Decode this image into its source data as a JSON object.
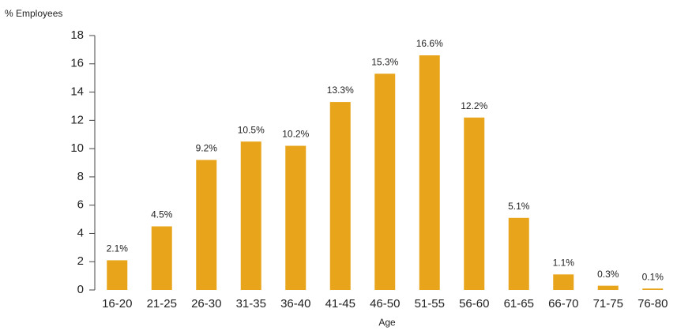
{
  "chart_data": {
    "type": "bar",
    "y_label": "% Employees",
    "x_label": "Age",
    "categories": [
      "16-20",
      "21-25",
      "26-30",
      "31-35",
      "36-40",
      "41-45",
      "46-50",
      "51-55",
      "56-60",
      "61-65",
      "66-70",
      "71-75",
      "76-80"
    ],
    "values": [
      2.1,
      4.5,
      9.2,
      10.5,
      10.2,
      13.3,
      15.3,
      16.6,
      12.2,
      5.1,
      1.1,
      0.3,
      0.1
    ],
    "value_labels": [
      "2.1%",
      "4.5%",
      "9.2%",
      "10.5%",
      "10.2%",
      "13.3%",
      "15.3%",
      "16.6%",
      "12.2%",
      "5.1%",
      "1.1%",
      "0.3%",
      "0.1%"
    ],
    "color": "#e8a51c",
    "ylim": [
      0,
      18
    ],
    "yticks": [
      0,
      2,
      4,
      6,
      8,
      10,
      12,
      14,
      16,
      18
    ],
    "grid": false
  }
}
